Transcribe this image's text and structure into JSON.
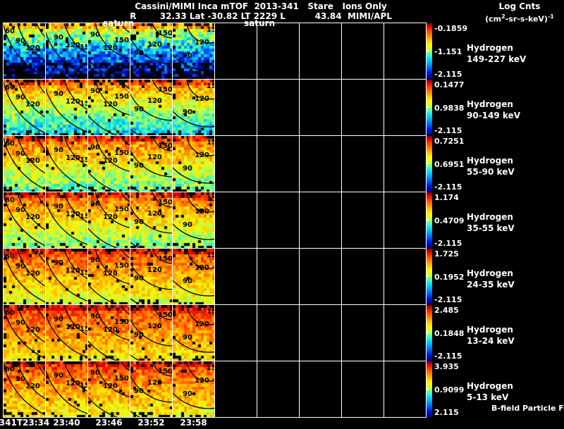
{
  "header": {
    "title_line1": "Cassini/MIMI Inca mTOF  2013-341   Stare   Ions Only",
    "title_line2": "R        32.33 Lat -30.82 LT 2229 L          43.84  MIMI/APL",
    "units_title": "Log Cnts",
    "units_paren": "(cm",
    "units_sup2": "2",
    "units_rest": "-sr-s-keV)",
    "units_exp": "-1"
  },
  "annotations": {
    "saturn_left": "saturn",
    "saturn_right": "saturn"
  },
  "time_axis": {
    "labels": [
      "341T23:34",
      "23:40",
      "23:46",
      "23:52",
      "23:58"
    ]
  },
  "panels": [
    {
      "contour_labels": [
        "60",
        "90",
        "120"
      ]
    },
    {
      "contour_labels": [
        "90",
        "120",
        "15"
      ]
    },
    {
      "contour_labels": [
        "90",
        "120",
        "150"
      ]
    },
    {
      "contour_labels": [
        "90",
        "120",
        "150"
      ]
    },
    {
      "contour_labels": [
        "90",
        "120",
        "15"
      ]
    }
  ],
  "rows": [
    {
      "species": "Hydrogen",
      "energy": "149-227 keV",
      "cb_top": "-0.1859",
      "cb_mid": "-1.151",
      "cb_bottom": "-2.115"
    },
    {
      "species": "Hydrogen",
      "energy": "90-149 keV",
      "cb_top": "0.1477",
      "cb_mid": "0.9838",
      "cb_bottom": "-2.115"
    },
    {
      "species": "Hydrogen",
      "energy": "55-90 keV",
      "cb_top": "0.7251",
      "cb_mid": "0.6951",
      "cb_bottom": "-2.115"
    },
    {
      "species": "Hydrogen",
      "energy": "35-55 keV",
      "cb_top": "1.174",
      "cb_mid": "0.4709",
      "cb_bottom": "-2.115"
    },
    {
      "species": "Hydrogen",
      "energy": "24-35 keV",
      "cb_top": "1.725",
      "cb_mid": "0.1952",
      "cb_bottom": "-2.115"
    },
    {
      "species": "Hydrogen",
      "energy": "13-24 keV",
      "cb_top": "2.485",
      "cb_mid": "0.1848",
      "cb_bottom": "-2.115"
    },
    {
      "species": "Hydrogen",
      "energy": "5-13 keV",
      "cb_top": "3.935",
      "cb_mid": "0.9099",
      "cb_bottom": "2.115",
      "note": "B-field Particle Flow"
    }
  ],
  "colors": {
    "background": "#000000",
    "grid_line": "#ffffff",
    "text": "#ffffff",
    "colorbar_top": "#7a0000",
    "colorbar_bottom": "#000082"
  },
  "chart_data": {
    "type": "heatmap",
    "title": "Cassini/MIMI Inca mTOF 2013-341 Stare Ions Only",
    "subtitle": "R 32.33 Lat -30.82 LT 2229 L 43.84 MIMI/APL",
    "colorbar_units": "Log Cnts (cm2-sr-s-keV)-1",
    "x_time_labels": [
      "341T23:34",
      "23:40",
      "23:46",
      "23:52",
      "23:58"
    ],
    "grid_columns_total": 10,
    "data_panels_per_row": 5,
    "contour_values_deg": [
      60,
      90,
      120,
      150
    ],
    "legend_position": "right",
    "series": [
      {
        "name": "Hydrogen 149-227 keV",
        "scale_max": -0.1859,
        "scale_mid": -1.151,
        "scale_min": -2.115
      },
      {
        "name": "Hydrogen 90-149 keV",
        "scale_max": 0.1477,
        "scale_mid": 0.9838,
        "scale_min": -2.115
      },
      {
        "name": "Hydrogen 55-90 keV",
        "scale_max": 0.7251,
        "scale_mid": 0.6951,
        "scale_min": -2.115
      },
      {
        "name": "Hydrogen 35-55 keV",
        "scale_max": 1.174,
        "scale_mid": 0.4709,
        "scale_min": -2.115
      },
      {
        "name": "Hydrogen 24-35 keV",
        "scale_max": 1.725,
        "scale_mid": 0.1952,
        "scale_min": -2.115
      },
      {
        "name": "Hydrogen 13-24 keV",
        "scale_max": 2.485,
        "scale_mid": 0.1848,
        "scale_min": -2.115
      },
      {
        "name": "Hydrogen 5-13 keV",
        "scale_max": 3.935,
        "scale_mid": 0.9099,
        "scale_min": 2.115
      }
    ]
  }
}
